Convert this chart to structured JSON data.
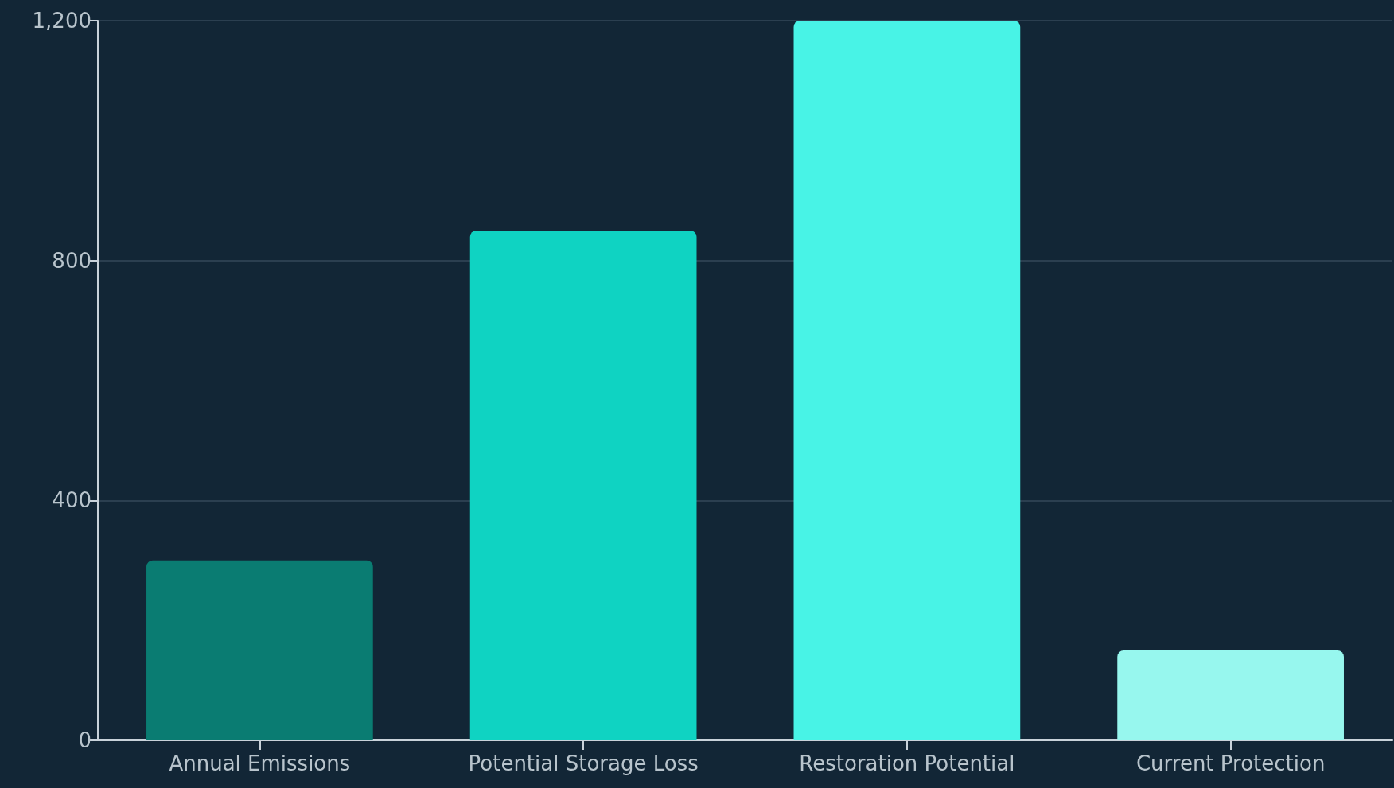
{
  "chart_data": {
    "type": "bar",
    "categories": [
      "Annual Emissions",
      "Potential Storage Loss",
      "Restoration Potential",
      "Current Protection"
    ],
    "values": [
      300,
      850,
      1200,
      150
    ],
    "colors": [
      "#0a7c72",
      "#0fd3c2",
      "#48f3e6",
      "#97f7ee"
    ],
    "ylim": [
      0,
      1200
    ],
    "yticks": [
      0,
      400,
      800,
      {
        "value": 1200,
        "label": "1,200"
      }
    ],
    "grid": "y"
  }
}
